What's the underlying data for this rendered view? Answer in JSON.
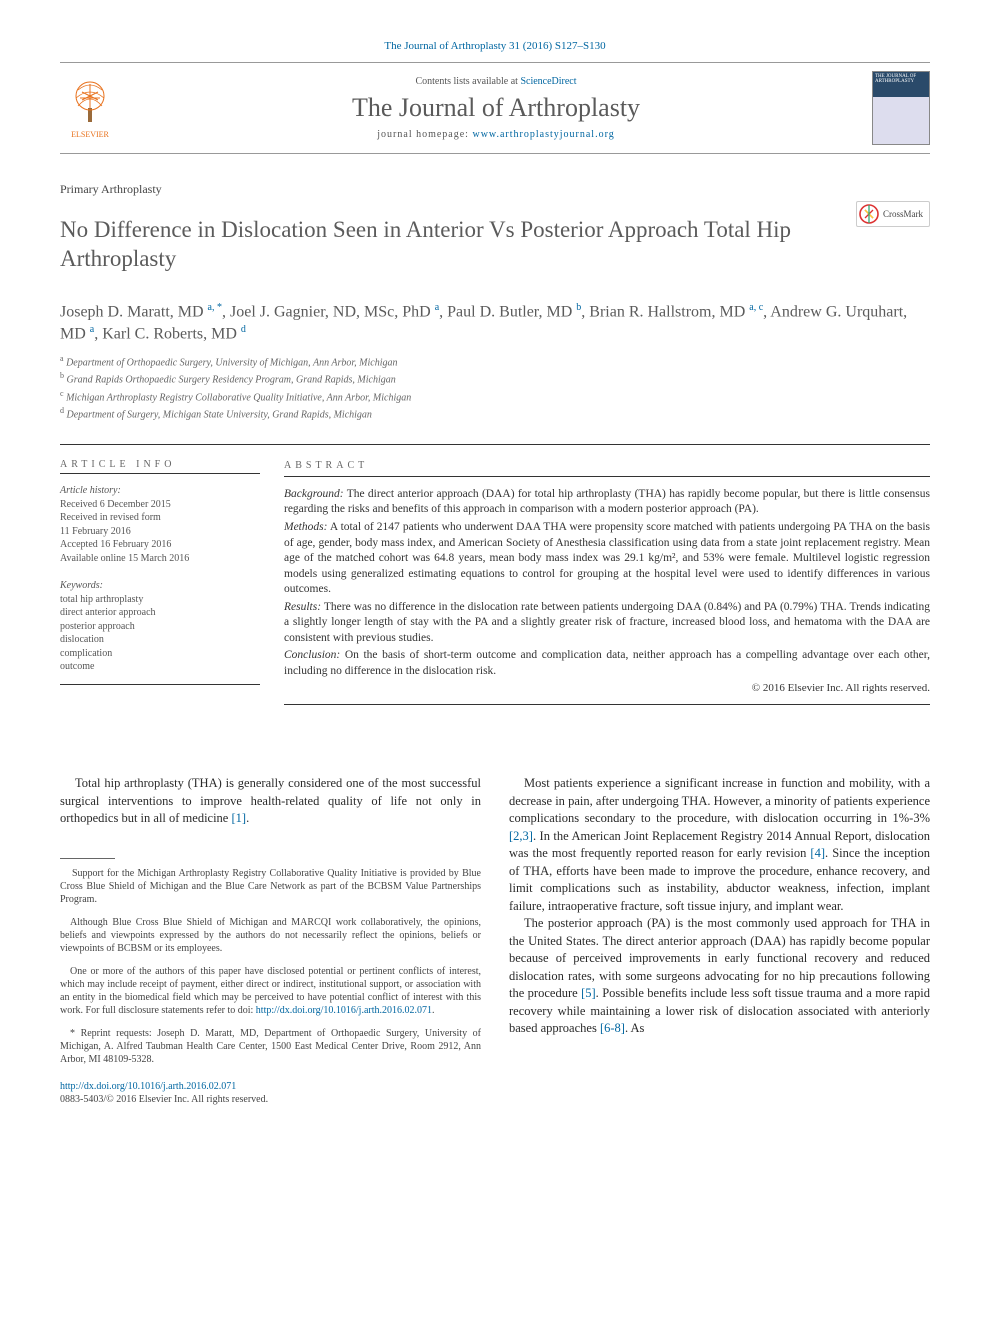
{
  "citation": "The Journal of Arthroplasty 31 (2016) S127–S130",
  "masthead": {
    "publisher": "ELSEVIER",
    "contents_line_pre": "Contents lists available at ",
    "contents_link": "ScienceDirect",
    "journal_name": "The Journal of Arthroplasty",
    "homepage_pre": "journal homepage: ",
    "homepage_url": "www.arthroplastyjournal.org",
    "cover_label": "THE JOURNAL OF ARTHROPLASTY"
  },
  "article_type": "Primary Arthroplasty",
  "title": "No Difference in Dislocation Seen in Anterior Vs Posterior Approach Total Hip Arthroplasty",
  "crossmark_label": "CrossMark",
  "authors_html": "Joseph D. Maratt, MD <sup>a, *</sup>, Joel J. Gagnier, ND, MSc, PhD <sup>a</sup>, Paul D. Butler, MD <sup>b</sup>, Brian R. Hallstrom, MD <sup>a, c</sup>, Andrew G. Urquhart, MD <sup>a</sup>, Karl C. Roberts, MD <sup>d</sup>",
  "affiliations": [
    "Department of Orthopaedic Surgery, University of Michigan, Ann Arbor, Michigan",
    "Grand Rapids Orthopaedic Surgery Residency Program, Grand Rapids, Michigan",
    "Michigan Arthroplasty Registry Collaborative Quality Initiative, Ann Arbor, Michigan",
    "Department of Surgery, Michigan State University, Grand Rapids, Michigan"
  ],
  "aff_markers": [
    "a",
    "b",
    "c",
    "d"
  ],
  "info": {
    "label": "article info",
    "history_label": "Article history:",
    "history": [
      "Received 6 December 2015",
      "Received in revised form",
      "11 February 2016",
      "Accepted 16 February 2016",
      "Available online 15 March 2016"
    ],
    "keywords_label": "Keywords:",
    "keywords": [
      "total hip arthroplasty",
      "direct anterior approach",
      "posterior approach",
      "dislocation",
      "complication",
      "outcome"
    ]
  },
  "abstract": {
    "label": "abstract",
    "paras": [
      {
        "head": "Background:",
        "text": " The direct anterior approach (DAA) for total hip arthroplasty (THA) has rapidly become popular, but there is little consensus regarding the risks and benefits of this approach in comparison with a modern posterior approach (PA)."
      },
      {
        "head": "Methods:",
        "text": " A total of 2147 patients who underwent DAA THA were propensity score matched with patients undergoing PA THA on the basis of age, gender, body mass index, and American Society of Anesthesia classification using data from a state joint replacement registry. Mean age of the matched cohort was 64.8 years, mean body mass index was 29.1 kg/m², and 53% were female. Multilevel logistic regression models using generalized estimating equations to control for grouping at the hospital level were used to identify differences in various outcomes."
      },
      {
        "head": "Results:",
        "text": " There was no difference in the dislocation rate between patients undergoing DAA (0.84%) and PA (0.79%) THA. Trends indicating a slightly longer length of stay with the PA and a slightly greater risk of fracture, increased blood loss, and hematoma with the DAA are consistent with previous studies."
      },
      {
        "head": "Conclusion:",
        "text": " On the basis of short-term outcome and complication data, neither approach has a compelling advantage over each other, including no difference in the dislocation risk."
      }
    ],
    "copyright": "© 2016 Elsevier Inc. All rights reserved."
  },
  "body": {
    "left": [
      "Total hip arthroplasty (THA) is generally considered one of the most successful surgical interventions to improve health-related quality of life not only in orthopedics but in all of medicine [1]."
    ],
    "right": [
      "Most patients experience a significant increase in function and mobility, with a decrease in pain, after undergoing THA. However, a minority of patients experience complications secondary to the procedure, with dislocation occurring in 1%-3% [2,3]. In the American Joint Replacement Registry 2014 Annual Report, dislocation was the most frequently reported reason for early revision [4]. Since the inception of THA, efforts have been made to improve the procedure, enhance recovery, and limit complications such as instability, abductor weakness, infection, implant failure, intraoperative fracture, soft tissue injury, and implant wear.",
      "The posterior approach (PA) is the most commonly used approach for THA in the United States. The direct anterior approach (DAA) has rapidly become popular because of perceived improvements in early functional recovery and reduced dislocation rates, with some surgeons advocating for no hip precautions following the procedure [5]. Possible benefits include less soft tissue trauma and a more rapid recovery while maintaining a lower risk of dislocation associated with anteriorly based approaches [6-8]. As"
    ],
    "refs": {
      "r1": "[1]",
      "r23": "[2,3]",
      "r4": "[4]",
      "r5": "[5]",
      "r68": "[6-8]"
    }
  },
  "footnotes": [
    "Support for the Michigan Arthroplasty Registry Collaborative Quality Initiative is provided by Blue Cross Blue Shield of Michigan and the Blue Care Network as part of the BCBSM Value Partnerships Program.",
    "Although Blue Cross Blue Shield of Michigan and MARCQI work collaboratively, the opinions, beliefs and viewpoints expressed by the authors do not necessarily reflect the opinions, beliefs or viewpoints of BCBSM or its employees.",
    "One or more of the authors of this paper have disclosed potential or pertinent conflicts of interest, which may include receipt of payment, either direct or indirect, institutional support, or association with an entity in the biomedical field which may be perceived to have potential conflict of interest with this work. For full disclosure statements refer to doi: http://dx.doi.org/10.1016/j.arth.2016.02.071.",
    "* Reprint requests: Joseph D. Maratt, MD, Department of Orthopaedic Surgery, University of Michigan, A. Alfred Taubman Health Care Center, 1500 East Medical Center Drive, Room 2912, Ann Arbor, MI 48109-5328."
  ],
  "footnote_doi": "http://dx.doi.org/10.1016/j.arth.2016.02.071",
  "doi": {
    "url": "http://dx.doi.org/10.1016/j.arth.2016.02.071",
    "issn_line": "0883-5403/© 2016 Elsevier Inc. All rights reserved."
  },
  "colors": {
    "link": "#0066a1",
    "elsevier": "#e8711c",
    "title_grey": "#5b5b5b"
  }
}
